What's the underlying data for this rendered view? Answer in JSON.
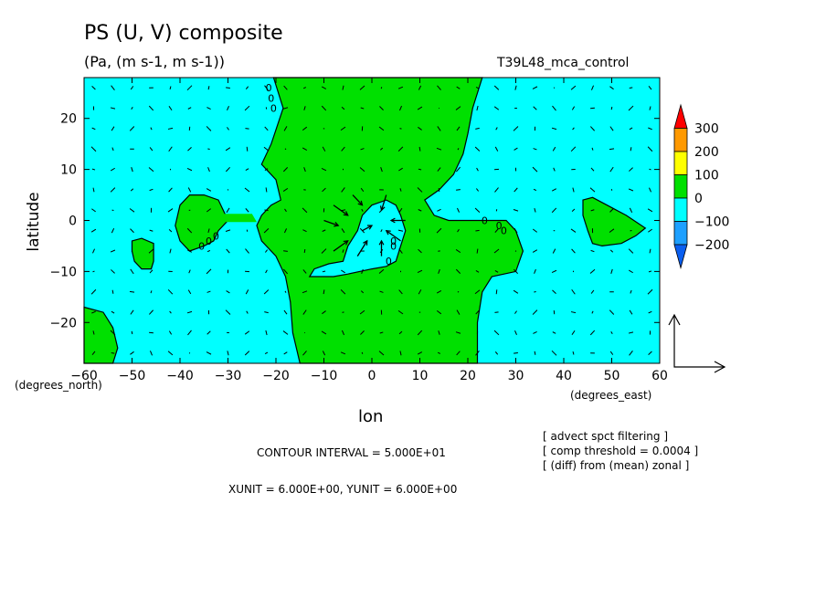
{
  "chart_data": {
    "type": "contour map with wind vectors",
    "title": "PS (U, V) composite",
    "subtitle": "(Pa, (m s-1, m s-1))",
    "run_label": "T39L48_mca_control",
    "xlabel": "lon",
    "ylabel": "latitude",
    "x_units": "(degrees_east)",
    "y_units": "(degrees_north)",
    "xlim": [
      -60,
      60
    ],
    "ylim": [
      -28,
      28
    ],
    "x_ticks": [
      -60,
      -50,
      -40,
      -30,
      -20,
      -10,
      0,
      10,
      20,
      30,
      40,
      50,
      60
    ],
    "x_tick_labels": [
      "−60",
      "−50",
      "−40",
      "−30",
      "−20",
      "−10",
      "0",
      "10",
      "20",
      "30",
      "40",
      "50",
      "60"
    ],
    "y_ticks": [
      -20,
      -10,
      0,
      10,
      20
    ],
    "y_tick_labels": [
      "−20",
      "−10",
      "0",
      "10",
      "20"
    ],
    "colorbar": {
      "levels": [
        -200,
        -100,
        0,
        100,
        200,
        300
      ],
      "labels": [
        "300",
        "200",
        "100",
        "0",
        "−100",
        "−200"
      ],
      "colors": [
        "#0a5ff0",
        "#1ea0ff",
        "#00ffff",
        "#00e000",
        "#ffff00",
        "#ff9900",
        "#ff0000"
      ]
    },
    "regions": [
      {
        "value_range": "0 to 100",
        "color": "#00e000",
        "lon": [
          -20,
          22
        ],
        "lat": [
          -28,
          28
        ],
        "description": "central band"
      },
      {
        "value_range": "-100 to 0",
        "color": "#00ffff",
        "description": "background"
      },
      {
        "value_range": "0 to 100",
        "color": "#00e000",
        "center": [
          -37,
          0
        ]
      },
      {
        "value_range": "0 to 100",
        "color": "#00e000",
        "center": [
          -48,
          -7
        ]
      },
      {
        "value_range": "0 to 100",
        "color": "#00e000",
        "center": [
          -56,
          -23
        ]
      },
      {
        "value_range": "0 to 100",
        "color": "#00e000",
        "center": [
          50,
          0
        ]
      },
      {
        "value_range": "-100 to 0",
        "color": "#00ffff",
        "center": [
          -2,
          -4
        ]
      }
    ],
    "contour_labels": [
      "0"
    ],
    "reference_vector_xunit": 6.0,
    "reference_vector_yunit": 6.0
  },
  "annotations": {
    "contour_interval": "CONTOUR INTERVAL = 5.000E+01",
    "unit_line": "XUNIT = 6.000E+00, YUNIT = 6.000E+00",
    "notes": [
      "[ advect spct filtering ]",
      "[ comp threshold = 0.0004 ]",
      "[ (diff) from (mean) zonal ]"
    ]
  }
}
